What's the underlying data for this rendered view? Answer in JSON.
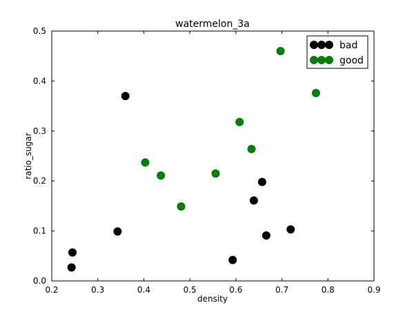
{
  "chart_data": {
    "type": "scatter",
    "title": "watermelon_3a",
    "xlabel": "density",
    "ylabel": "ratio_sugar",
    "xlim": [
      0.2,
      0.9
    ],
    "ylim": [
      0.0,
      0.5
    ],
    "xticks": [
      "0.2",
      "0.3",
      "0.4",
      "0.5",
      "0.6",
      "0.7",
      "0.8",
      "0.9"
    ],
    "yticks": [
      "0.0",
      "0.1",
      "0.2",
      "0.3",
      "0.4",
      "0.5"
    ],
    "grid": false,
    "legend_position": "top-right",
    "series": [
      {
        "name": "bad",
        "color": "#000000",
        "points": [
          {
            "x": 0.243,
            "y": 0.027
          },
          {
            "x": 0.245,
            "y": 0.057
          },
          {
            "x": 0.343,
            "y": 0.099
          },
          {
            "x": 0.36,
            "y": 0.37
          },
          {
            "x": 0.593,
            "y": 0.042
          },
          {
            "x": 0.639,
            "y": 0.161
          },
          {
            "x": 0.657,
            "y": 0.198
          },
          {
            "x": 0.666,
            "y": 0.091
          },
          {
            "x": 0.719,
            "y": 0.103
          }
        ]
      },
      {
        "name": "good",
        "color": "#008000",
        "points": [
          {
            "x": 0.403,
            "y": 0.237
          },
          {
            "x": 0.437,
            "y": 0.211
          },
          {
            "x": 0.481,
            "y": 0.149
          },
          {
            "x": 0.556,
            "y": 0.215
          },
          {
            "x": 0.608,
            "y": 0.318
          },
          {
            "x": 0.634,
            "y": 0.264
          },
          {
            "x": 0.697,
            "y": 0.46
          },
          {
            "x": 0.774,
            "y": 0.376
          }
        ]
      }
    ]
  }
}
